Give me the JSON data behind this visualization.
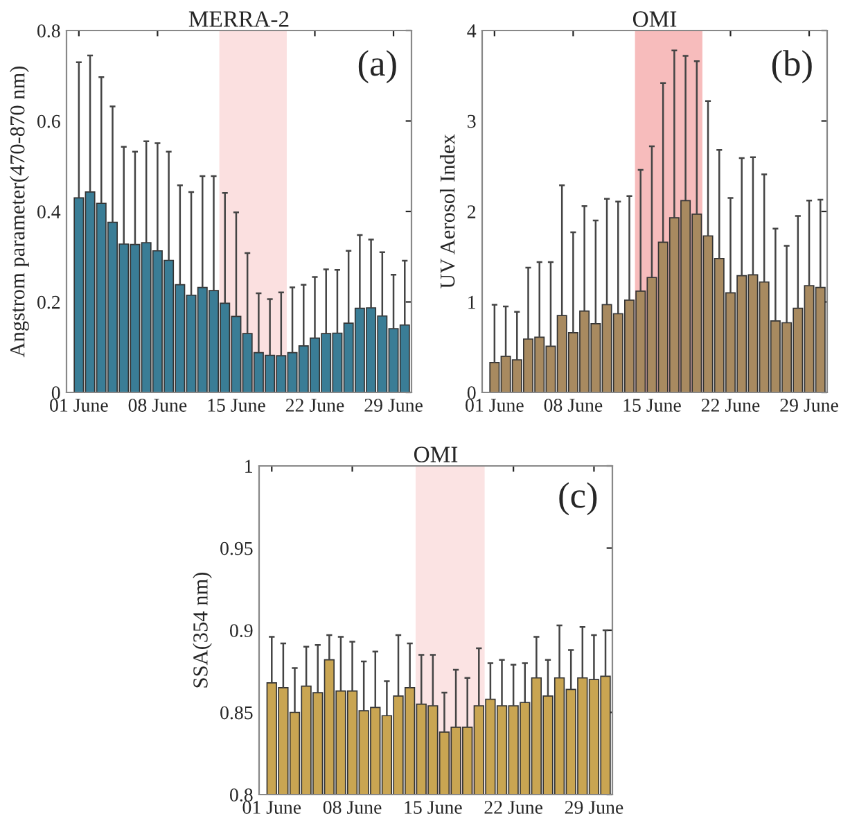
{
  "chart_data": [
    {
      "type": "bar",
      "title": "MERRA-2",
      "ylabel": "Angstrom parameter(470-870 nm)",
      "annotations": [
        "(a)"
      ],
      "categories": [
        "01 June",
        null,
        null,
        null,
        null,
        null,
        null,
        "08 June",
        null,
        null,
        null,
        null,
        null,
        null,
        "15 June",
        null,
        null,
        null,
        null,
        null,
        null,
        "22 June",
        null,
        null,
        null,
        null,
        null,
        null,
        "29 June",
        null
      ],
      "series": [
        {
          "color": "#3a7d96",
          "values": [
            0.43,
            0.443,
            0.418,
            0.376,
            0.328,
            0.327,
            0.331,
            0.313,
            0.292,
            0.238,
            0.215,
            0.232,
            0.225,
            0.197,
            0.168,
            0.13,
            0.088,
            0.082,
            0.081,
            0.088,
            0.103,
            0.12,
            0.13,
            0.131,
            0.153,
            0.186,
            0.187,
            0.169,
            0.141,
            0.149
          ],
          "errors": [
            [
              0.43,
              0.73
            ],
            [
              0.443,
              0.745
            ],
            [
              0.418,
              0.697
            ],
            [
              0.376,
              0.632
            ],
            [
              0.328,
              0.543
            ],
            [
              0.327,
              0.532
            ],
            [
              0.331,
              0.555
            ],
            [
              0.313,
              0.551
            ],
            [
              0.292,
              0.532
            ],
            [
              0.238,
              0.458
            ],
            [
              0.215,
              0.443
            ],
            [
              0.232,
              0.478
            ],
            [
              0.225,
              0.478
            ],
            [
              0.197,
              0.441
            ],
            [
              0.168,
              0.398
            ],
            [
              0.13,
              0.308
            ],
            [
              0.088,
              0.219
            ],
            [
              0.082,
              0.206
            ],
            [
              0.081,
              0.221
            ],
            [
              0.088,
              0.232
            ],
            [
              0.103,
              0.238
            ],
            [
              0.12,
              0.255
            ],
            [
              0.13,
              0.272
            ],
            [
              0.131,
              0.271
            ],
            [
              0.153,
              0.313
            ],
            [
              0.186,
              0.348
            ],
            [
              0.187,
              0.338
            ],
            [
              0.169,
              0.31
            ],
            [
              0.141,
              0.26
            ],
            [
              0.149,
              0.291
            ]
          ]
        }
      ],
      "ylim": [
        0,
        0.8
      ],
      "yticks": [
        0,
        0.2,
        0.4,
        0.6,
        0.8
      ],
      "grid": false,
      "legend": false
    },
    {
      "type": "bar",
      "title": "OMI",
      "ylabel": "UV Aerosol Index",
      "annotations": [
        "(b)"
      ],
      "categories": [
        "01 June",
        null,
        null,
        null,
        null,
        null,
        null,
        "08 June",
        null,
        null,
        null,
        null,
        null,
        null,
        "15 June",
        null,
        null,
        null,
        null,
        null,
        null,
        "22 June",
        null,
        null,
        null,
        null,
        null,
        null,
        "29 June",
        null
      ],
      "series": [
        {
          "color": "#a88a60",
          "values": [
            0.33,
            0.4,
            0.36,
            0.59,
            0.61,
            0.51,
            0.85,
            0.66,
            0.9,
            0.76,
            0.97,
            0.87,
            1.02,
            1.12,
            1.27,
            1.66,
            1.93,
            2.12,
            1.97,
            1.73,
            1.48,
            1.1,
            1.29,
            1.3,
            1.22,
            0.79,
            0.77,
            0.93,
            1.18,
            1.16
          ],
          "errors": [
            [
              0.33,
              0.97
            ],
            [
              0.4,
              0.95
            ],
            [
              0.36,
              0.89
            ],
            [
              0.59,
              1.38
            ],
            [
              0.61,
              1.44
            ],
            [
              0.51,
              1.44
            ],
            [
              0.85,
              2.29
            ],
            [
              0.66,
              1.77
            ],
            [
              0.9,
              2.06
            ],
            [
              0.76,
              1.9
            ],
            [
              0.97,
              2.14
            ],
            [
              0.87,
              2.11
            ],
            [
              1.02,
              2.17
            ],
            [
              1.12,
              2.46
            ],
            [
              1.27,
              2.72
            ],
            [
              1.66,
              3.42
            ],
            [
              1.93,
              3.78
            ],
            [
              2.12,
              3.72
            ],
            [
              1.97,
              3.66
            ],
            [
              1.73,
              3.22
            ],
            [
              1.48,
              2.68
            ],
            [
              1.1,
              2.15
            ],
            [
              1.29,
              2.59
            ],
            [
              1.3,
              2.6
            ],
            [
              1.22,
              2.41
            ],
            [
              0.79,
              1.81
            ],
            [
              0.77,
              1.62
            ],
            [
              0.93,
              1.95
            ],
            [
              1.18,
              2.12
            ],
            [
              1.16,
              2.13
            ]
          ]
        }
      ],
      "ylim": [
        0,
        4
      ],
      "yticks": [
        0,
        1,
        2,
        3,
        4
      ],
      "grid": false,
      "legend": false
    },
    {
      "type": "bar",
      "title": "OMI",
      "ylabel": "SSA(354 nm)",
      "annotations": [
        "(c)"
      ],
      "categories": [
        "01 June",
        null,
        null,
        null,
        null,
        null,
        null,
        "08 June",
        null,
        null,
        null,
        null,
        null,
        null,
        "15 June",
        null,
        null,
        null,
        null,
        null,
        null,
        "22 June",
        null,
        null,
        null,
        null,
        null,
        null,
        "29 June",
        null
      ],
      "series": [
        {
          "color": "#c9a552",
          "values": [
            0.868,
            0.865,
            0.85,
            0.866,
            0.862,
            0.882,
            0.863,
            0.863,
            0.851,
            0.853,
            0.848,
            0.86,
            0.865,
            0.855,
            0.854,
            0.838,
            0.841,
            0.841,
            0.854,
            0.858,
            0.854,
            0.854,
            0.856,
            0.871,
            0.86,
            0.871,
            0.864,
            0.871,
            0.87,
            0.872
          ],
          "errors": [
            [
              0.868,
              0.896
            ],
            [
              0.865,
              0.892
            ],
            [
              0.85,
              0.877
            ],
            [
              0.866,
              0.89
            ],
            [
              0.862,
              0.891
            ],
            [
              0.882,
              0.897
            ],
            [
              0.863,
              0.896
            ],
            [
              0.863,
              0.893
            ],
            [
              0.851,
              0.881
            ],
            [
              0.853,
              0.887
            ],
            [
              0.848,
              0.869
            ],
            [
              0.86,
              0.897
            ],
            [
              0.865,
              0.892
            ],
            [
              0.855,
              0.885
            ],
            [
              0.854,
              0.885
            ],
            [
              0.838,
              0.862
            ],
            [
              0.841,
              0.876
            ],
            [
              0.841,
              0.871
            ],
            [
              0.854,
              0.889
            ],
            [
              0.858,
              0.88
            ],
            [
              0.854,
              0.882
            ],
            [
              0.854,
              0.879
            ],
            [
              0.856,
              0.88
            ],
            [
              0.871,
              0.896
            ],
            [
              0.86,
              0.882
            ],
            [
              0.871,
              0.903
            ],
            [
              0.864,
              0.888
            ],
            [
              0.871,
              0.902
            ],
            [
              0.87,
              0.897
            ],
            [
              0.872,
              0.9
            ]
          ]
        }
      ],
      "ylim": [
        0.8,
        1
      ],
      "yticks": [
        0.8,
        0.85,
        0.9,
        0.95,
        1
      ],
      "grid": false,
      "legend": false
    }
  ]
}
